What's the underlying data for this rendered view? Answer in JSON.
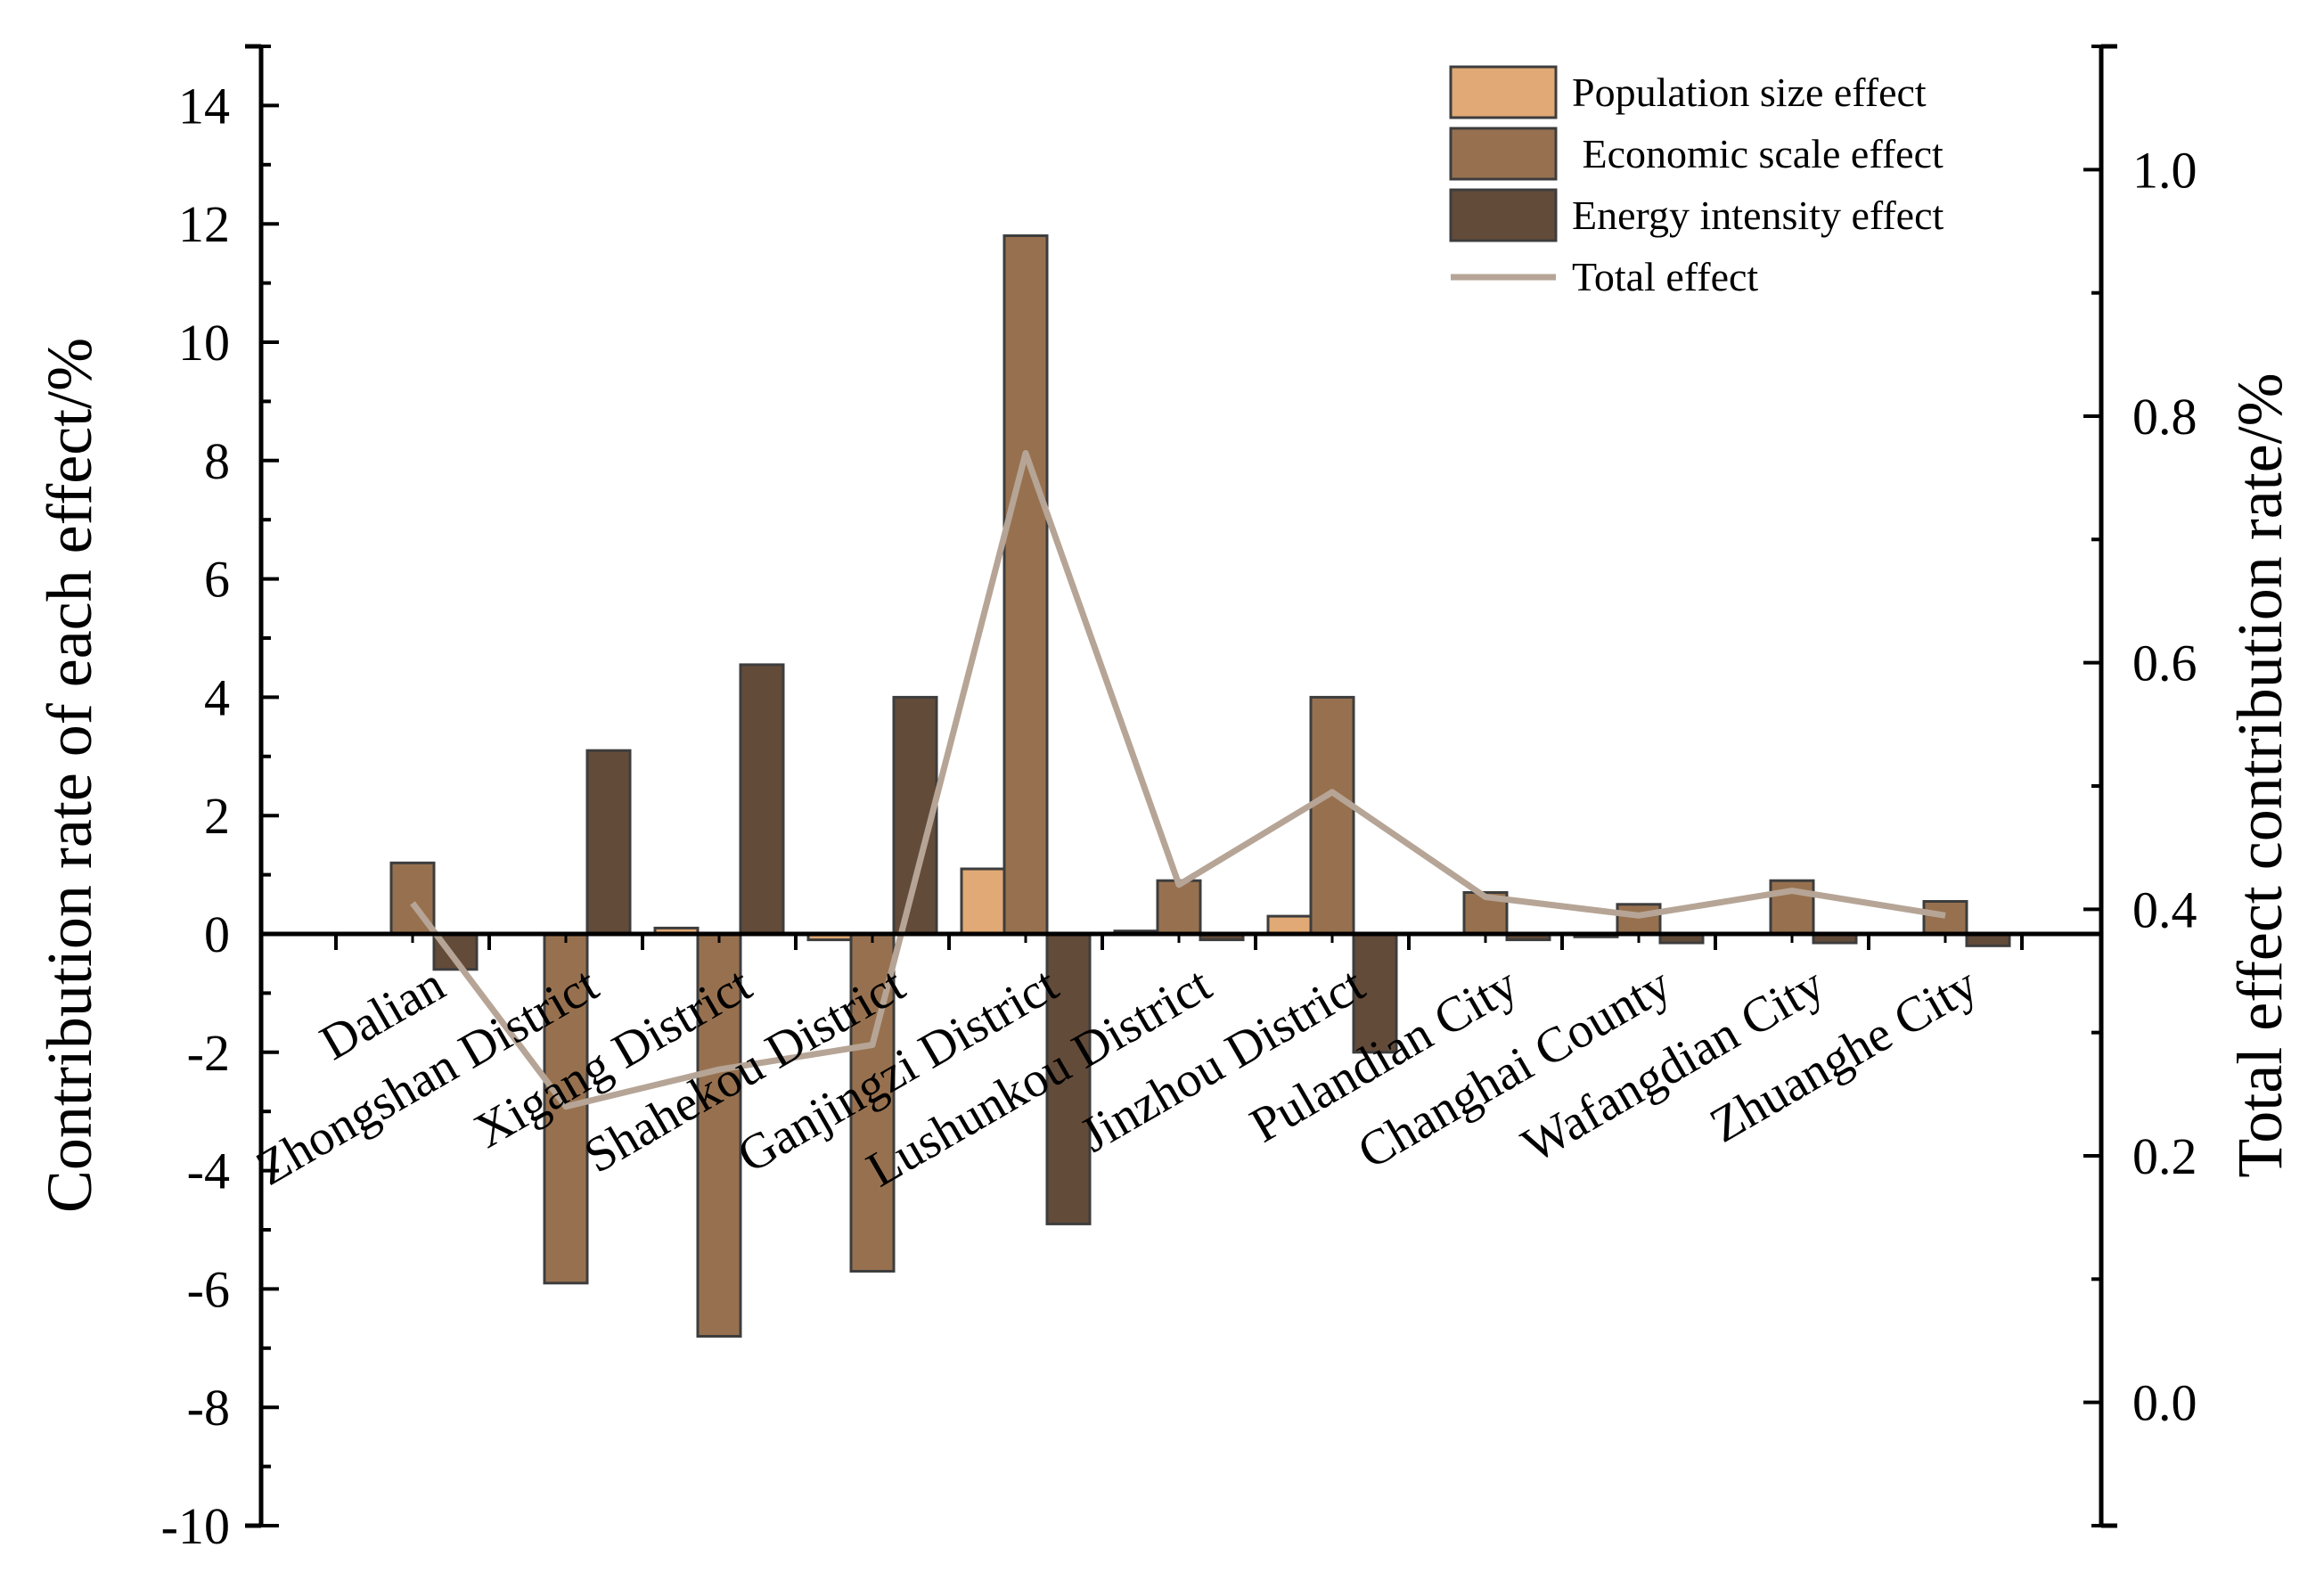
{
  "chart_data": {
    "type": "bar",
    "categories": [
      "Dalian",
      "Zhongshan District",
      "Xigang District",
      "Shahekou District",
      "Ganjingzi District",
      "Lushunkou District",
      "Jinzhou District",
      "Pulandian City",
      "Changhai County",
      "Wafangdian City",
      "Zhuanghe City"
    ],
    "series": [
      {
        "name": "Population size effect",
        "axis": "left",
        "color": "#e1a975",
        "values": [
          0,
          0,
          0.1,
          -0.1,
          1.1,
          0.05,
          0.3,
          0,
          -0.05,
          0,
          0
        ]
      },
      {
        "name": " Economic scale effect",
        "axis": "left",
        "color": "#97714f",
        "values": [
          1.2,
          -5.9,
          -6.8,
          -5.7,
          11.8,
          0.9,
          4.0,
          0.7,
          0.5,
          0.9,
          0.55
        ]
      },
      {
        "name": "Energy intensity effect",
        "axis": "left",
        "color": "#634b39",
        "values": [
          -0.6,
          3.1,
          4.55,
          4.0,
          -4.9,
          -0.1,
          -2.0,
          -0.1,
          -0.15,
          -0.15,
          -0.2
        ]
      }
    ],
    "line_series": {
      "name": "Total effect",
      "axis": "right",
      "color": "#b6a596",
      "values": [
        0.405,
        0.24,
        0.27,
        0.29,
        0.77,
        0.42,
        0.495,
        0.41,
        0.395,
        0.415,
        0.395
      ]
    },
    "title": "",
    "xlabel": "",
    "ylabel": "Contribution rate of each effect/%",
    "y2label": "Total effect contribution rate/%",
    "ylim": [
      -10,
      15
    ],
    "y2lim": [
      -0.1,
      1.1
    ],
    "yticks": [
      "-10",
      "-8",
      "-6",
      "-4",
      "-2",
      "0",
      "2",
      "4",
      "6",
      "8",
      "10",
      "12",
      "14"
    ],
    "y2ticks": [
      "0.0",
      "0.2",
      "0.4",
      "0.6",
      "0.8",
      "1.0"
    ],
    "y2tick_values": [
      0,
      0.2,
      0.4,
      0.6,
      0.8,
      1.0
    ],
    "legend_position": "top-right",
    "grid": false
  },
  "legend": [
    {
      "label": "Population size effect",
      "kind": "box",
      "color": "#e1a975"
    },
    {
      "label": " Economic scale effect",
      "kind": "box",
      "color": "#97714f"
    },
    {
      "label": "Energy intensity effect",
      "kind": "box",
      "color": "#634b39"
    },
    {
      "label": "Total effect",
      "kind": "line",
      "color": "#b6a596"
    }
  ]
}
